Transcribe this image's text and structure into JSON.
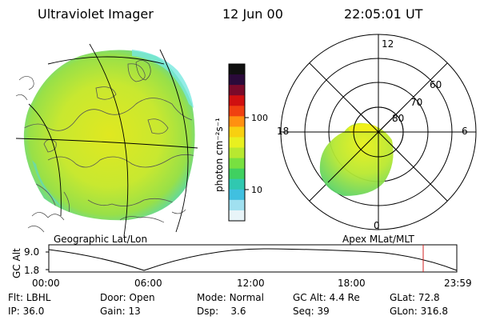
{
  "header": {
    "title": "Ultraviolet Imager",
    "date": "12 Jun 00",
    "time": "22:05:01 UT"
  },
  "colorbar": {
    "label": "photon cm⁻²s⁻¹",
    "tick_high": "100",
    "tick_low": "10",
    "colors": [
      "#101010",
      "#2a0a3a",
      "#7a0a2a",
      "#d01010",
      "#f04010",
      "#ff9010",
      "#f8d010",
      "#e8f020",
      "#b8e830",
      "#78e040",
      "#40d060",
      "#30c8b0",
      "#40c0e0",
      "#a0e0f0",
      "#e8f4f8"
    ]
  },
  "geo": {
    "caption": "Geographic Lat/Lon"
  },
  "polar": {
    "caption": "Apex MLat/MLT",
    "mlt_12": "12",
    "mlt_18": "18",
    "mlt_6": "6",
    "mlt_0": "0",
    "lat_60": "60",
    "lat_70": "70",
    "lat_80": "80"
  },
  "altplot": {
    "ylabel": "GC Alt",
    "y_top": "9.0",
    "y_bottom": "1.8",
    "x_ticks": [
      "00:00",
      "06:00",
      "12:00",
      "18:00",
      "23:59"
    ]
  },
  "info": {
    "flt_label": "Flt:",
    "flt_value": "LBHL",
    "door_label": "Door:",
    "door_value": "Open",
    "mode_label": "Mode:",
    "mode_value": "Normal",
    "gcalt_label": "GC Alt:",
    "gcalt_value": "4.4 Re",
    "glat_label": "GLat:",
    "glat_value": "72.8",
    "ip_label": "IP:",
    "ip_value": "36.0",
    "gain_label": "Gain:",
    "gain_value": "13",
    "dsp_label": "Dsp:",
    "dsp_value": "3.6",
    "seq_label": "Seq:",
    "seq_value": "39",
    "glon_label": "GLon:",
    "glon_value": "316.8"
  }
}
